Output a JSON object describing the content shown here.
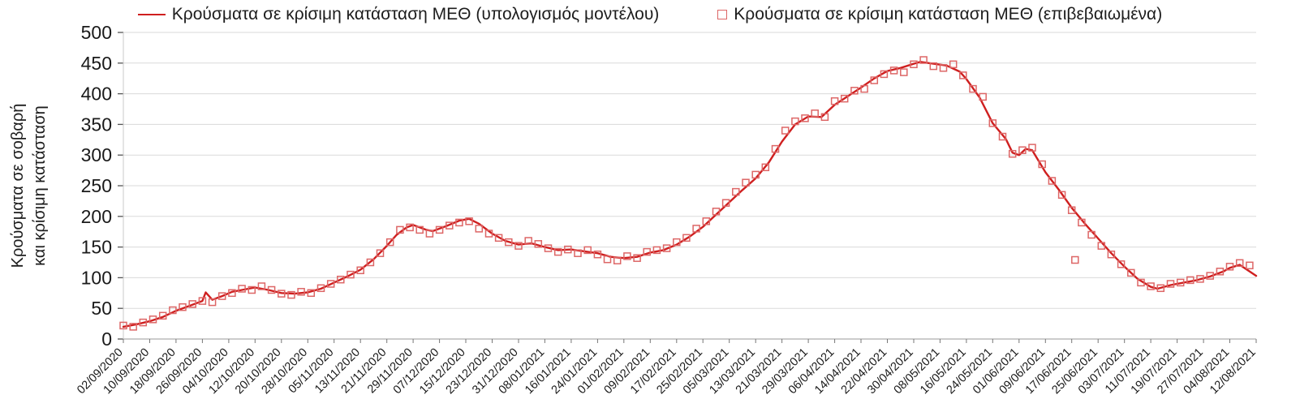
{
  "chart_data": {
    "type": "line+scatter",
    "title": "",
    "ylabel_line1": "Κρούσματα σε σοβαρή",
    "ylabel_line2": "και κρίσιμη κατάσταση",
    "ylim": [
      0,
      500
    ],
    "ytick_step": 50,
    "x_tick_step_days": 8,
    "x_max_day": 344,
    "grid": true,
    "legend_position": "top",
    "x_tick_labels": [
      "02/09/2020",
      "10/09/2020",
      "18/09/2020",
      "26/09/2020",
      "04/10/2020",
      "12/10/2020",
      "20/10/2020",
      "28/10/2020",
      "05/11/2020",
      "13/11/2020",
      "21/11/2020",
      "29/11/2020",
      "07/12/2020",
      "15/12/2020",
      "23/12/2020",
      "31/12/2020",
      "08/01/2021",
      "16/01/2021",
      "24/01/2021",
      "01/02/2021",
      "09/02/2021",
      "17/02/2021",
      "25/02/2021",
      "05/03/2021",
      "13/03/2021",
      "21/03/2021",
      "29/03/2021",
      "06/04/2021",
      "14/04/2021",
      "22/04/2021",
      "30/04/2021",
      "08/05/2021",
      "16/05/2021",
      "24/05/2021",
      "01/06/2021",
      "09/06/2021",
      "17/06/2021",
      "25/06/2021",
      "03/07/2021",
      "11/07/2021",
      "19/07/2021",
      "27/07/2021",
      "04/08/2021",
      "12/08/2021"
    ],
    "series": [
      {
        "name": "Κρούσματα σε κρίσιμη κατάσταση ΜΕΘ (υπολογισμός μοντέλου)",
        "type": "line",
        "color": "#cf1f1f",
        "points": [
          [
            0,
            20
          ],
          [
            4,
            24
          ],
          [
            8,
            29
          ],
          [
            12,
            36
          ],
          [
            16,
            46
          ],
          [
            20,
            54
          ],
          [
            24,
            62
          ],
          [
            25,
            76
          ],
          [
            27,
            64
          ],
          [
            30,
            70
          ],
          [
            33,
            77
          ],
          [
            36,
            80
          ],
          [
            40,
            84
          ],
          [
            44,
            80
          ],
          [
            48,
            75
          ],
          [
            52,
            74
          ],
          [
            56,
            76
          ],
          [
            60,
            82
          ],
          [
            64,
            92
          ],
          [
            68,
            102
          ],
          [
            72,
            113
          ],
          [
            76,
            130
          ],
          [
            80,
            152
          ],
          [
            83,
            170
          ],
          [
            86,
            182
          ],
          [
            88,
            186
          ],
          [
            92,
            178
          ],
          [
            94,
            176
          ],
          [
            98,
            184
          ],
          [
            102,
            193
          ],
          [
            105,
            196
          ],
          [
            108,
            188
          ],
          [
            112,
            172
          ],
          [
            116,
            160
          ],
          [
            120,
            154
          ],
          [
            124,
            156
          ],
          [
            128,
            150
          ],
          [
            132,
            145
          ],
          [
            136,
            146
          ],
          [
            140,
            143
          ],
          [
            144,
            140
          ],
          [
            148,
            134
          ],
          [
            152,
            132
          ],
          [
            156,
            134
          ],
          [
            160,
            141
          ],
          [
            164,
            145
          ],
          [
            168,
            154
          ],
          [
            172,
            167
          ],
          [
            176,
            183
          ],
          [
            180,
            203
          ],
          [
            184,
            223
          ],
          [
            188,
            243
          ],
          [
            192,
            262
          ],
          [
            196,
            288
          ],
          [
            200,
            322
          ],
          [
            204,
            350
          ],
          [
            208,
            363
          ],
          [
            212,
            362
          ],
          [
            216,
            382
          ],
          [
            220,
            396
          ],
          [
            224,
            410
          ],
          [
            228,
            425
          ],
          [
            232,
            437
          ],
          [
            236,
            442
          ],
          [
            240,
            449
          ],
          [
            242,
            452
          ],
          [
            246,
            449
          ],
          [
            250,
            446
          ],
          [
            254,
            436
          ],
          [
            256,
            424
          ],
          [
            260,
            394
          ],
          [
            264,
            352
          ],
          [
            268,
            326
          ],
          [
            270,
            304
          ],
          [
            272,
            300
          ],
          [
            274,
            310
          ],
          [
            276,
            308
          ],
          [
            280,
            272
          ],
          [
            284,
            244
          ],
          [
            288,
            214
          ],
          [
            292,
            188
          ],
          [
            296,
            164
          ],
          [
            300,
            140
          ],
          [
            304,
            118
          ],
          [
            308,
            98
          ],
          [
            312,
            85
          ],
          [
            314,
            82
          ],
          [
            318,
            88
          ],
          [
            322,
            92
          ],
          [
            326,
            96
          ],
          [
            330,
            102
          ],
          [
            334,
            110
          ],
          [
            336,
            116
          ],
          [
            339,
            121
          ],
          [
            344,
            103
          ]
        ]
      },
      {
        "name": "Κρούσματα σε κρίσιμη κατάσταση ΜΕΘ (επιβεβαιωμένα)",
        "type": "scatter",
        "color": "#dd6666",
        "points": [
          [
            0,
            22
          ],
          [
            3,
            20
          ],
          [
            6,
            27
          ],
          [
            9,
            32
          ],
          [
            12,
            38
          ],
          [
            15,
            47
          ],
          [
            18,
            52
          ],
          [
            21,
            57
          ],
          [
            24,
            62
          ],
          [
            27,
            60
          ],
          [
            30,
            70
          ],
          [
            33,
            75
          ],
          [
            36,
            82
          ],
          [
            39,
            80
          ],
          [
            42,
            86
          ],
          [
            45,
            80
          ],
          [
            48,
            74
          ],
          [
            51,
            72
          ],
          [
            54,
            77
          ],
          [
            57,
            75
          ],
          [
            60,
            83
          ],
          [
            63,
            90
          ],
          [
            66,
            97
          ],
          [
            69,
            105
          ],
          [
            72,
            112
          ],
          [
            75,
            125
          ],
          [
            78,
            140
          ],
          [
            81,
            158
          ],
          [
            84,
            178
          ],
          [
            87,
            182
          ],
          [
            90,
            178
          ],
          [
            93,
            172
          ],
          [
            96,
            178
          ],
          [
            99,
            185
          ],
          [
            102,
            190
          ],
          [
            105,
            192
          ],
          [
            108,
            180
          ],
          [
            111,
            172
          ],
          [
            114,
            165
          ],
          [
            117,
            158
          ],
          [
            120,
            152
          ],
          [
            123,
            160
          ],
          [
            126,
            155
          ],
          [
            129,
            148
          ],
          [
            132,
            142
          ],
          [
            135,
            146
          ],
          [
            138,
            140
          ],
          [
            141,
            145
          ],
          [
            144,
            138
          ],
          [
            147,
            130
          ],
          [
            150,
            128
          ],
          [
            153,
            135
          ],
          [
            156,
            132
          ],
          [
            159,
            142
          ],
          [
            162,
            145
          ],
          [
            165,
            148
          ],
          [
            168,
            158
          ],
          [
            171,
            165
          ],
          [
            174,
            180
          ],
          [
            177,
            192
          ],
          [
            180,
            208
          ],
          [
            183,
            222
          ],
          [
            186,
            240
          ],
          [
            189,
            255
          ],
          [
            192,
            268
          ],
          [
            195,
            280
          ],
          [
            198,
            310
          ],
          [
            201,
            340
          ],
          [
            204,
            355
          ],
          [
            207,
            360
          ],
          [
            210,
            368
          ],
          [
            213,
            362
          ],
          [
            216,
            388
          ],
          [
            219,
            392
          ],
          [
            222,
            405
          ],
          [
            225,
            408
          ],
          [
            228,
            422
          ],
          [
            231,
            432
          ],
          [
            234,
            438
          ],
          [
            237,
            435
          ],
          [
            240,
            448
          ],
          [
            243,
            455
          ],
          [
            246,
            445
          ],
          [
            249,
            442
          ],
          [
            252,
            448
          ],
          [
            255,
            430
          ],
          [
            258,
            408
          ],
          [
            261,
            395
          ],
          [
            264,
            352
          ],
          [
            267,
            330
          ],
          [
            270,
            302
          ],
          [
            273,
            308
          ],
          [
            276,
            312
          ],
          [
            279,
            285
          ],
          [
            282,
            258
          ],
          [
            285,
            235
          ],
          [
            288,
            210
          ],
          [
            291,
            190
          ],
          [
            294,
            170
          ],
          [
            297,
            152
          ],
          [
            300,
            138
          ],
          [
            303,
            122
          ],
          [
            306,
            108
          ],
          [
            309,
            92
          ],
          [
            312,
            86
          ],
          [
            315,
            83
          ],
          [
            318,
            90
          ],
          [
            321,
            92
          ],
          [
            324,
            96
          ],
          [
            327,
            98
          ],
          [
            330,
            103
          ],
          [
            333,
            110
          ],
          [
            336,
            118
          ],
          [
            339,
            124
          ],
          [
            342,
            120
          ],
          [
            289,
            129
          ]
        ]
      }
    ]
  }
}
